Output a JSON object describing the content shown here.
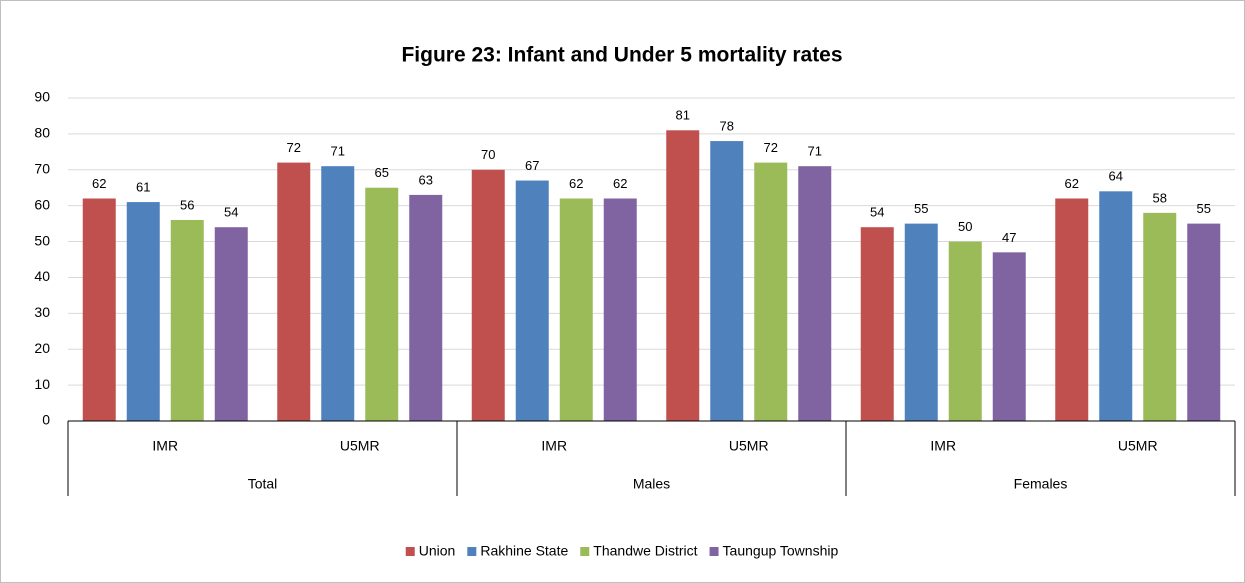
{
  "chart_data": {
    "type": "bar",
    "title": "Figure 23: Infant and Under 5 mortality rates",
    "categories": [
      "IMR",
      "U5MR",
      "IMR",
      "U5MR",
      "IMR",
      "U5MR"
    ],
    "category_groups": [
      "Total",
      "Males",
      "Females"
    ],
    "series": [
      {
        "name": "Union",
        "color": "#c0504d",
        "values": [
          62,
          72,
          70,
          81,
          54,
          62
        ]
      },
      {
        "name": "Rakhine State",
        "color": "#4f81bd",
        "values": [
          61,
          71,
          67,
          78,
          55,
          64
        ]
      },
      {
        "name": "Thandwe District",
        "color": "#9bbb59",
        "values": [
          56,
          65,
          62,
          72,
          50,
          58
        ]
      },
      {
        "name": "Taungup Township",
        "color": "#8064a2",
        "values": [
          54,
          63,
          62,
          71,
          47,
          55
        ]
      }
    ],
    "ylim": [
      0,
      90
    ],
    "yticks": [
      0,
      10,
      20,
      30,
      40,
      50,
      60,
      70,
      80,
      90
    ],
    "grid": true,
    "legend": "bottom"
  }
}
